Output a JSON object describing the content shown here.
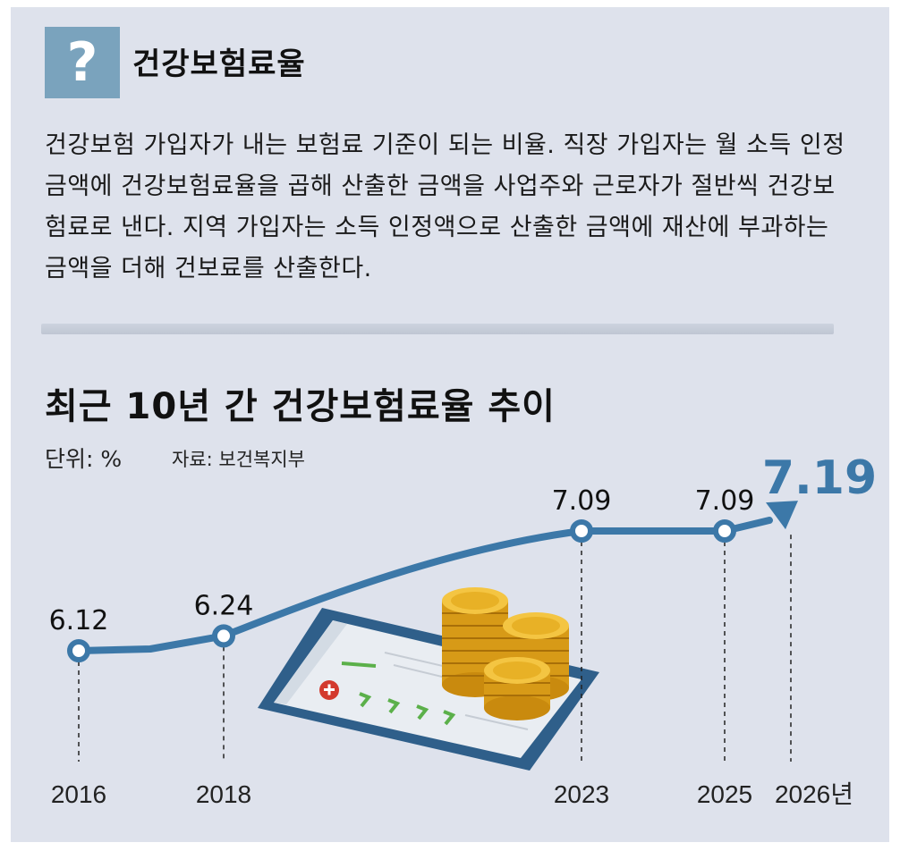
{
  "term": {
    "icon": "question-mark-icon",
    "icon_glyph": "?",
    "title": "건강보험료율"
  },
  "definition": "건강보험 가입자가 내는 보험료 기준이 되는 비율. 직장 가입자는 월 소득 인정 금액에 건강보험료율을 곱해 산출한 금액을 사업주와 근로자가 절반씩 건강보험료로 낸다. 지역 가입자는 소득 인정액으로 산출한 금액에 재산에 부과하는 금액을 더해 건보료를 산출한다.",
  "chart_header": {
    "title": "최근 10년 간 건강보험료율 추이",
    "unit": "단위: %",
    "source": "자료: 보건복지부"
  },
  "colors": {
    "panel": "#dee2ec",
    "line": "#3c78a8",
    "highlight_value": "#3c78a8",
    "icon_box": "#7aa3bd"
  },
  "chart_data": {
    "type": "line",
    "title": "최근 10년 간 건강보험료율 추이",
    "unit": "%",
    "x_labels": [
      "2016",
      "2018",
      "2023",
      "2025",
      "2026년"
    ],
    "x": [
      2016,
      2018,
      2023,
      2025,
      2026
    ],
    "values": [
      6.12,
      6.24,
      7.09,
      7.09,
      7.19
    ],
    "value_labels": [
      "6.12",
      "6.24",
      "7.09",
      "7.09",
      "7.19"
    ],
    "highlight_last": true,
    "final_point_arrow": true,
    "grid": false,
    "legend": "none"
  }
}
